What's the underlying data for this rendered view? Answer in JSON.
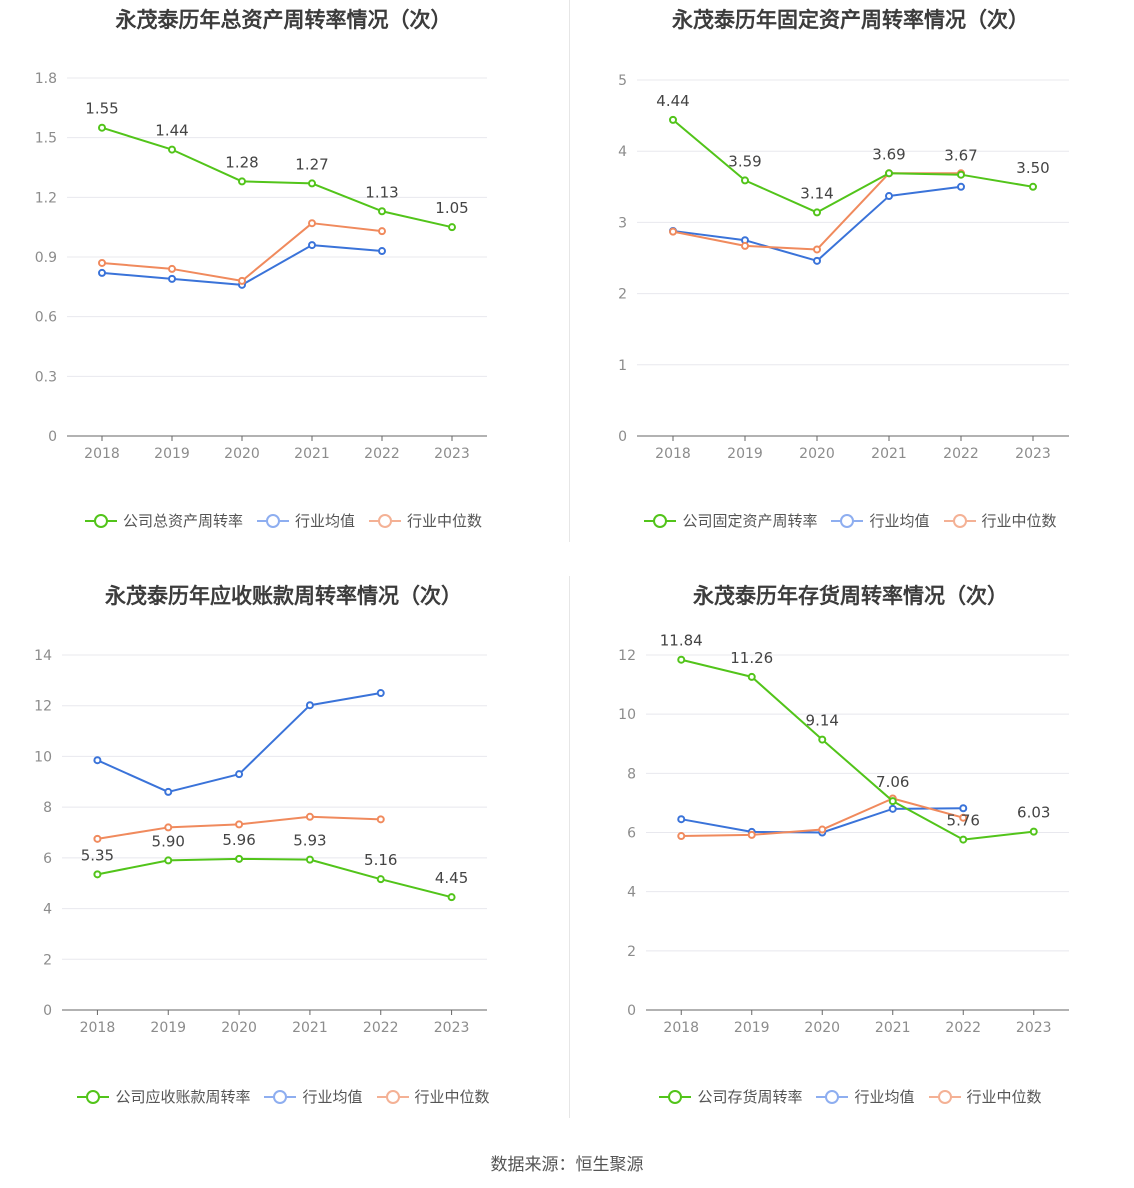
{
  "colors": {
    "company": "#52c41a",
    "avg": "#3a73d9",
    "median": "#f08a5d",
    "avg_legend": "#8eaef0",
    "median_legend": "#f4b195",
    "grid": "#e8e8ee",
    "axis": "#666666",
    "tick": "#8c8c8c",
    "label": "#444444"
  },
  "legend_common": {
    "avg": "行业均值",
    "median": "行业中位数"
  },
  "source": "数据来源：恒生聚源",
  "chart_data": [
    {
      "type": "line",
      "title": "永茂泰历年总资产周转率情况（次）",
      "categories": [
        "2018",
        "2019",
        "2020",
        "2021",
        "2022",
        "2023"
      ],
      "y_ticks": [
        "0",
        "0.3",
        "0.6",
        "0.9",
        "1.2",
        "1.5",
        "1.8"
      ],
      "ylim": [
        0,
        1.8
      ],
      "series": [
        {
          "key": "company",
          "name": "公司总资产周转率",
          "values": [
            1.55,
            1.44,
            1.28,
            1.27,
            1.13,
            1.05
          ],
          "labels": [
            "1.55",
            "1.44",
            "1.28",
            "1.27",
            "1.13",
            "1.05"
          ]
        },
        {
          "key": "avg",
          "name": "行业均值",
          "values": [
            0.82,
            0.79,
            0.76,
            0.96,
            0.93,
            null
          ]
        },
        {
          "key": "median",
          "name": "行业中位数",
          "values": [
            0.87,
            0.84,
            0.78,
            1.07,
            1.03,
            null
          ]
        }
      ]
    },
    {
      "type": "line",
      "title": "永茂泰历年固定资产周转率情况（次）",
      "categories": [
        "2018",
        "2019",
        "2020",
        "2021",
        "2022",
        "2023"
      ],
      "y_ticks": [
        "0",
        "1",
        "2",
        "3",
        "4",
        "5"
      ],
      "ylim": [
        0,
        5
      ],
      "series": [
        {
          "key": "company",
          "name": "公司固定资产周转率",
          "values": [
            4.44,
            3.59,
            3.14,
            3.69,
            3.67,
            3.5
          ],
          "labels": [
            "4.44",
            "3.59",
            "3.14",
            "3.69",
            "3.67",
            "3.50"
          ]
        },
        {
          "key": "avg",
          "name": "行业均值",
          "values": [
            2.88,
            2.75,
            2.46,
            3.37,
            3.5,
            null
          ]
        },
        {
          "key": "median",
          "name": "行业中位数",
          "values": [
            2.87,
            2.67,
            2.62,
            3.69,
            3.69,
            null
          ]
        }
      ]
    },
    {
      "type": "line",
      "title": "永茂泰历年应收账款周转率情况（次）",
      "categories": [
        "2018",
        "2019",
        "2020",
        "2021",
        "2022",
        "2023"
      ],
      "y_ticks": [
        "0",
        "2",
        "4",
        "6",
        "8",
        "10",
        "12",
        "14"
      ],
      "ylim": [
        0,
        14
      ],
      "series": [
        {
          "key": "company",
          "name": "公司应收账款周转率",
          "values": [
            5.35,
            5.9,
            5.96,
            5.93,
            5.16,
            4.45
          ],
          "labels": [
            "5.35",
            "5.90",
            "5.96",
            "5.93",
            "5.16",
            "4.45"
          ]
        },
        {
          "key": "avg",
          "name": "行业均值",
          "values": [
            9.85,
            8.6,
            9.3,
            12.02,
            12.5,
            null
          ]
        },
        {
          "key": "median",
          "name": "行业中位数",
          "values": [
            6.75,
            7.2,
            7.32,
            7.62,
            7.52,
            null
          ]
        }
      ]
    },
    {
      "type": "line",
      "title": "永茂泰历年存货周转率情况（次）",
      "categories": [
        "2018",
        "2019",
        "2020",
        "2021",
        "2022",
        "2023"
      ],
      "y_ticks": [
        "0",
        "2",
        "4",
        "6",
        "8",
        "10",
        "12"
      ],
      "ylim": [
        0,
        12
      ],
      "series": [
        {
          "key": "company",
          "name": "公司存货周转率",
          "values": [
            11.84,
            11.26,
            9.14,
            7.06,
            5.76,
            6.03
          ],
          "labels": [
            "11.84",
            "11.26",
            "9.14",
            "7.06",
            "5.76",
            "6.03"
          ]
        },
        {
          "key": "avg",
          "name": "行业均值",
          "values": [
            6.45,
            6.02,
            6.0,
            6.8,
            6.82,
            null
          ]
        },
        {
          "key": "median",
          "name": "行业中位数",
          "values": [
            5.88,
            5.92,
            6.1,
            7.15,
            6.5,
            null
          ]
        }
      ]
    }
  ]
}
